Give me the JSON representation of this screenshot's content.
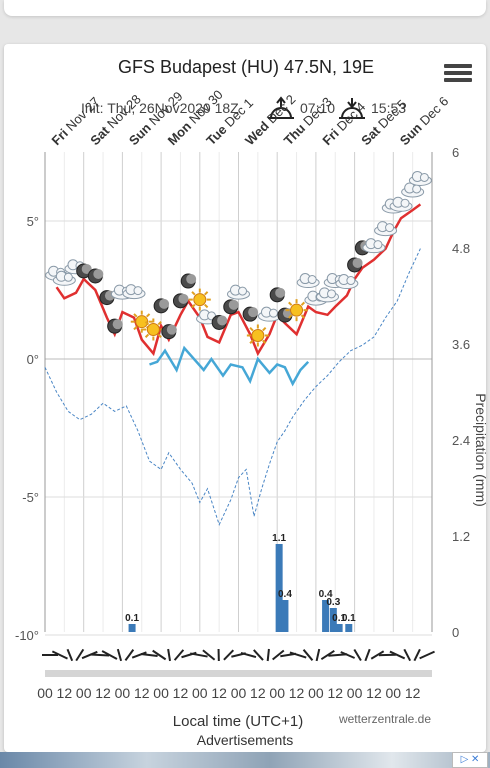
{
  "page": {
    "title": "GFS Budapest (HU) 47.5N, 19E",
    "init": "Init: Thu, 26Nov2020 18Z",
    "sunrise": "07:10",
    "sunset": "15:53",
    "credit": "wetterzentrale.de",
    "ads_label": "Advertisements",
    "ad_badge": "▷ ✕"
  },
  "colors": {
    "tmax": "#e03030",
    "tmin": "#45a7d6",
    "precip": "#3b7ab8",
    "dewpoint_dash": "#4a86c5",
    "grid": "#dddddd"
  },
  "chart_data": {
    "type": "line",
    "title": "GFS Budapest (HU) 47.5N, 19E",
    "xlabel": "Local time (UTC+1)",
    "ylabel_left": "",
    "ylabel_right": "Precipitation (mm)",
    "ylim_left": [
      -10,
      7.5
    ],
    "ylim_right": [
      0,
      6
    ],
    "yticks_left": [
      "5°",
      "0°",
      "-5°",
      "-10°"
    ],
    "yticks_right": [
      "6",
      "4.8",
      "3.6",
      "2.4",
      "1.2",
      "0"
    ],
    "day_labels": [
      "Fri Nov 27",
      "Sat Nov 28",
      "Sun Nov 29",
      "Mon Nov 30",
      "Tue Dec 1",
      "Wed Dec 2",
      "Thu Dec 3",
      "Fri Dec 4",
      "Sat Dec 5",
      "Sun Dec 6"
    ],
    "hour_labels": [
      "00",
      "12",
      "00",
      "12",
      "00",
      "12",
      "00",
      "12",
      "00",
      "12",
      "00",
      "12",
      "00",
      "12",
      "00",
      "12",
      "00",
      "12",
      "00",
      "12"
    ],
    "grid": true,
    "temp_max": [
      [
        0.3,
        2.6
      ],
      [
        0.5,
        2.2
      ],
      [
        0.8,
        2.4
      ],
      [
        1.0,
        2.9
      ],
      [
        1.3,
        2.5
      ],
      [
        1.6,
        1.5
      ],
      [
        1.8,
        0.9
      ],
      [
        2.0,
        1.7
      ],
      [
        2.3,
        1.5
      ],
      [
        2.5,
        0.7
      ],
      [
        2.8,
        0.2
      ],
      [
        3.0,
        1.2
      ],
      [
        3.2,
        0.7
      ],
      [
        3.5,
        1.6
      ],
      [
        3.7,
        2.1
      ],
      [
        4.0,
        1.5
      ],
      [
        4.2,
        0.8
      ],
      [
        4.5,
        0.6
      ],
      [
        4.8,
        1.6
      ],
      [
        5.0,
        1.7
      ],
      [
        5.3,
        0.9
      ],
      [
        5.5,
        0.2
      ],
      [
        5.8,
        0.9
      ],
      [
        6.0,
        1.6
      ],
      [
        6.2,
        1.3
      ],
      [
        6.5,
        0.9
      ],
      [
        6.8,
        1.9
      ],
      [
        7.0,
        1.7
      ],
      [
        7.3,
        1.6
      ],
      [
        7.5,
        1.9
      ],
      [
        7.8,
        2.3
      ],
      [
        8.0,
        2.9
      ],
      [
        8.2,
        3.3
      ],
      [
        8.5,
        3.6
      ],
      [
        8.8,
        4.0
      ],
      [
        9.0,
        4.6
      ],
      [
        9.2,
        5.1
      ],
      [
        9.5,
        5.4
      ],
      [
        9.7,
        5.6
      ]
    ],
    "temp_min": [
      [
        2.7,
        -0.2
      ],
      [
        2.9,
        -0.1
      ],
      [
        3.1,
        0.3
      ],
      [
        3.4,
        -0.4
      ],
      [
        3.6,
        0.4
      ],
      [
        4.1,
        -0.4
      ],
      [
        4.3,
        0.0
      ],
      [
        4.6,
        -0.6
      ],
      [
        4.8,
        -0.2
      ],
      [
        5.1,
        -0.3
      ],
      [
        5.3,
        -0.8
      ],
      [
        5.5,
        0.0
      ],
      [
        5.8,
        -0.5
      ],
      [
        6.0,
        -0.2
      ],
      [
        6.2,
        -0.3
      ],
      [
        6.4,
        -0.9
      ],
      [
        6.6,
        -0.4
      ],
      [
        6.8,
        -0.1
      ]
    ],
    "dewpoint_dashed": [
      [
        0.0,
        -0.3
      ],
      [
        0.3,
        -1.2
      ],
      [
        0.6,
        -1.9
      ],
      [
        0.9,
        -2.2
      ],
      [
        1.2,
        -2.0
      ],
      [
        1.5,
        -1.6
      ],
      [
        1.8,
        -1.9
      ],
      [
        2.1,
        -1.7
      ],
      [
        2.4,
        -2.6
      ],
      [
        2.7,
        -3.7
      ],
      [
        3.0,
        -4.0
      ],
      [
        3.2,
        -3.4
      ],
      [
        3.5,
        -4.0
      ],
      [
        3.8,
        -4.5
      ],
      [
        4.0,
        -5.2
      ],
      [
        4.2,
        -4.7
      ],
      [
        4.5,
        -6.0
      ],
      [
        4.8,
        -5.1
      ],
      [
        5.0,
        -4.3
      ],
      [
        5.2,
        -4.0
      ],
      [
        5.4,
        -5.7
      ],
      [
        5.6,
        -4.7
      ],
      [
        5.8,
        -3.8
      ],
      [
        6.0,
        -3.0
      ],
      [
        6.2,
        -2.6
      ],
      [
        6.4,
        -2.1
      ],
      [
        6.7,
        -1.5
      ],
      [
        7.0,
        -1.0
      ],
      [
        7.3,
        -0.6
      ],
      [
        7.6,
        -0.1
      ],
      [
        7.9,
        0.3
      ],
      [
        8.2,
        0.5
      ],
      [
        8.5,
        0.8
      ],
      [
        8.8,
        1.5
      ],
      [
        9.1,
        2.1
      ],
      [
        9.4,
        3.1
      ],
      [
        9.7,
        4.0
      ]
    ],
    "precip_bars": [
      [
        2.25,
        0.1
      ],
      [
        6.05,
        1.1
      ],
      [
        6.2,
        0.4
      ],
      [
        7.25,
        0.4
      ],
      [
        7.45,
        0.3
      ],
      [
        7.6,
        0.1
      ],
      [
        7.85,
        0.1
      ]
    ],
    "precip_labels": [
      "0.1",
      "1.1",
      "0.4",
      "0.4",
      "0.3",
      "0.1",
      "0.1"
    ],
    "wind_speed": [
      0.6,
      0.9,
      0.7,
      1.0,
      0.8,
      0.9,
      1.0,
      0.7,
      0.8,
      0.6,
      0.7,
      0.9,
      0.8,
      0.7,
      0.6,
      0.8,
      0.9,
      0.7,
      0.6,
      0.5,
      0.6,
      0.7,
      0.8,
      0.7,
      0.6,
      0.8,
      0.9,
      0.7,
      0.8,
      0.9,
      0.6,
      0.7,
      0.8,
      0.6,
      0.7,
      0.8,
      0.9,
      0.7,
      0.8
    ]
  }
}
